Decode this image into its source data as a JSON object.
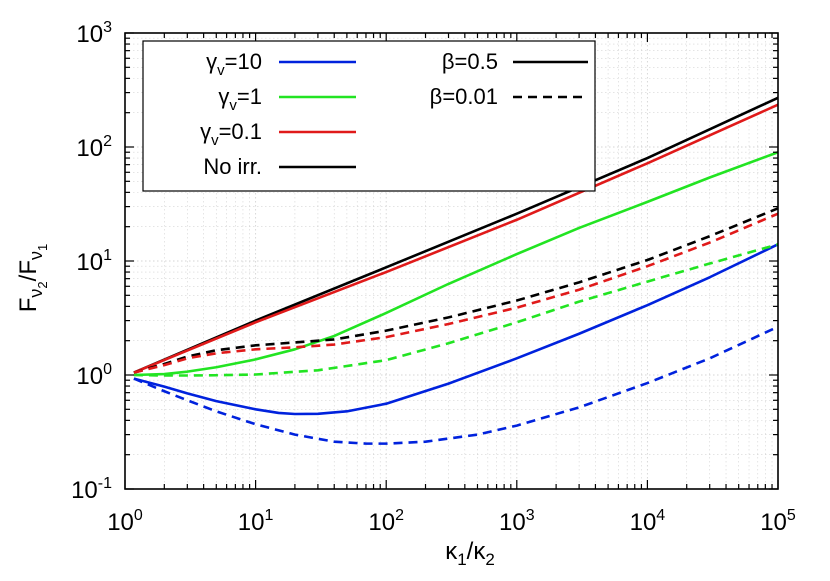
{
  "chart_data": {
    "type": "line",
    "xscale": "log",
    "yscale": "log",
    "xlim": [
      1,
      100000
    ],
    "ylim": [
      0.1,
      1000
    ],
    "grid": true,
    "legend_placement": "top-left",
    "xlabel": {
      "main": "κ",
      "sub1": "1",
      "slash": "/κ",
      "sub2": "2"
    },
    "ylabel": {
      "main": "F",
      "sub1": "ν",
      "subsub1": "2",
      "slash": "/F",
      "sub2": "ν",
      "subsub2": "1"
    },
    "x_ticks": [
      {
        "base": "10",
        "exp": "0",
        "value": 1
      },
      {
        "base": "10",
        "exp": "1",
        "value": 10
      },
      {
        "base": "10",
        "exp": "2",
        "value": 100
      },
      {
        "base": "10",
        "exp": "3",
        "value": 1000
      },
      {
        "base": "10",
        "exp": "4",
        "value": 10000
      },
      {
        "base": "10",
        "exp": "5",
        "value": 100000
      }
    ],
    "y_ticks": [
      {
        "base": "10",
        "exp": "-1",
        "value": 0.1
      },
      {
        "base": "10",
        "exp": "0",
        "value": 1
      },
      {
        "base": "10",
        "exp": "1",
        "value": 10
      },
      {
        "base": "10",
        "exp": "2",
        "value": 100
      },
      {
        "base": "10",
        "exp": "3",
        "value": 1000
      }
    ],
    "legend": {
      "colors": [
        {
          "symbol": "γ",
          "sub": "v",
          "value": "=10",
          "color": "#0022dd",
          "dash": "solid"
        },
        {
          "symbol": "γ",
          "sub": "v",
          "value": "=1",
          "color": "#22e422",
          "dash": "solid"
        },
        {
          "symbol": "γ",
          "sub": "v",
          "value": "=0.1",
          "color": "#e01a1a",
          "dash": "solid"
        },
        {
          "symbol": "No irr.",
          "sub": "",
          "value": "",
          "color": "#000000",
          "dash": "solid"
        }
      ],
      "styles": [
        {
          "label": "β=0.5",
          "color": "#000000",
          "dash": "solid"
        },
        {
          "label": "β=0.01",
          "color": "#000000",
          "dash": "dashed"
        }
      ]
    },
    "series": [
      {
        "color": "#000000",
        "dash": "solid",
        "x": [
          1.17,
          10,
          100,
          1000,
          10000,
          100000
        ],
        "y": [
          1.05,
          3.0,
          8.8,
          26,
          80,
          270
        ]
      },
      {
        "color": "#e01a1a",
        "dash": "solid",
        "x": [
          1.17,
          10,
          100,
          1000,
          10000,
          100000
        ],
        "y": [
          1.05,
          2.9,
          8.0,
          23,
          72,
          235
        ]
      },
      {
        "color": "#22e422",
        "dash": "solid",
        "x": [
          1.17,
          2,
          3,
          5,
          10,
          20,
          40,
          100,
          300,
          1000,
          3000,
          10000,
          30000,
          100000
        ],
        "y": [
          1.0,
          1.02,
          1.07,
          1.17,
          1.37,
          1.68,
          2.2,
          3.5,
          6.3,
          11.5,
          19.5,
          33,
          54,
          90
        ]
      },
      {
        "color": "#0022dd",
        "dash": "solid",
        "x": [
          1.17,
          2,
          3,
          5,
          10,
          15,
          20,
          30,
          50,
          100,
          300,
          1000,
          3000,
          10000,
          30000,
          100000
        ],
        "y": [
          0.93,
          0.79,
          0.69,
          0.59,
          0.5,
          0.465,
          0.455,
          0.457,
          0.48,
          0.56,
          0.84,
          1.4,
          2.3,
          4.1,
          7.2,
          14
        ]
      },
      {
        "color": "#000000",
        "dash": "dashed",
        "x": [
          1.17,
          2,
          3,
          5,
          10,
          20,
          40,
          100,
          300,
          1000,
          3000,
          10000,
          30000,
          100000
        ],
        "y": [
          1.05,
          1.25,
          1.45,
          1.65,
          1.82,
          1.93,
          2.05,
          2.45,
          3.2,
          4.5,
          6.5,
          10.2,
          16.5,
          29
        ]
      },
      {
        "color": "#e01a1a",
        "dash": "dashed",
        "x": [
          1.17,
          2,
          3,
          5,
          10,
          20,
          40,
          100,
          300,
          1000,
          3000,
          10000,
          30000,
          100000
        ],
        "y": [
          1.05,
          1.22,
          1.4,
          1.55,
          1.68,
          1.75,
          1.85,
          2.15,
          2.8,
          3.9,
          5.6,
          9.0,
          14.5,
          26
        ]
      },
      {
        "color": "#22e422",
        "dash": "dashed",
        "x": [
          1.17,
          2,
          3,
          5,
          10,
          30,
          100,
          300,
          1000,
          3000,
          10000,
          30000,
          100000
        ],
        "y": [
          1.0,
          0.99,
          0.99,
          0.995,
          1.01,
          1.1,
          1.35,
          1.9,
          2.9,
          4.4,
          6.6,
          9.5,
          14
        ]
      },
      {
        "color": "#0022dd",
        "dash": "dashed",
        "x": [
          1.17,
          2,
          3,
          5,
          10,
          20,
          40,
          70,
          100,
          200,
          500,
          1000,
          3000,
          10000,
          30000,
          100000
        ],
        "y": [
          0.93,
          0.72,
          0.6,
          0.48,
          0.37,
          0.3,
          0.26,
          0.25,
          0.25,
          0.26,
          0.3,
          0.36,
          0.52,
          0.85,
          1.4,
          2.65
        ]
      }
    ]
  }
}
